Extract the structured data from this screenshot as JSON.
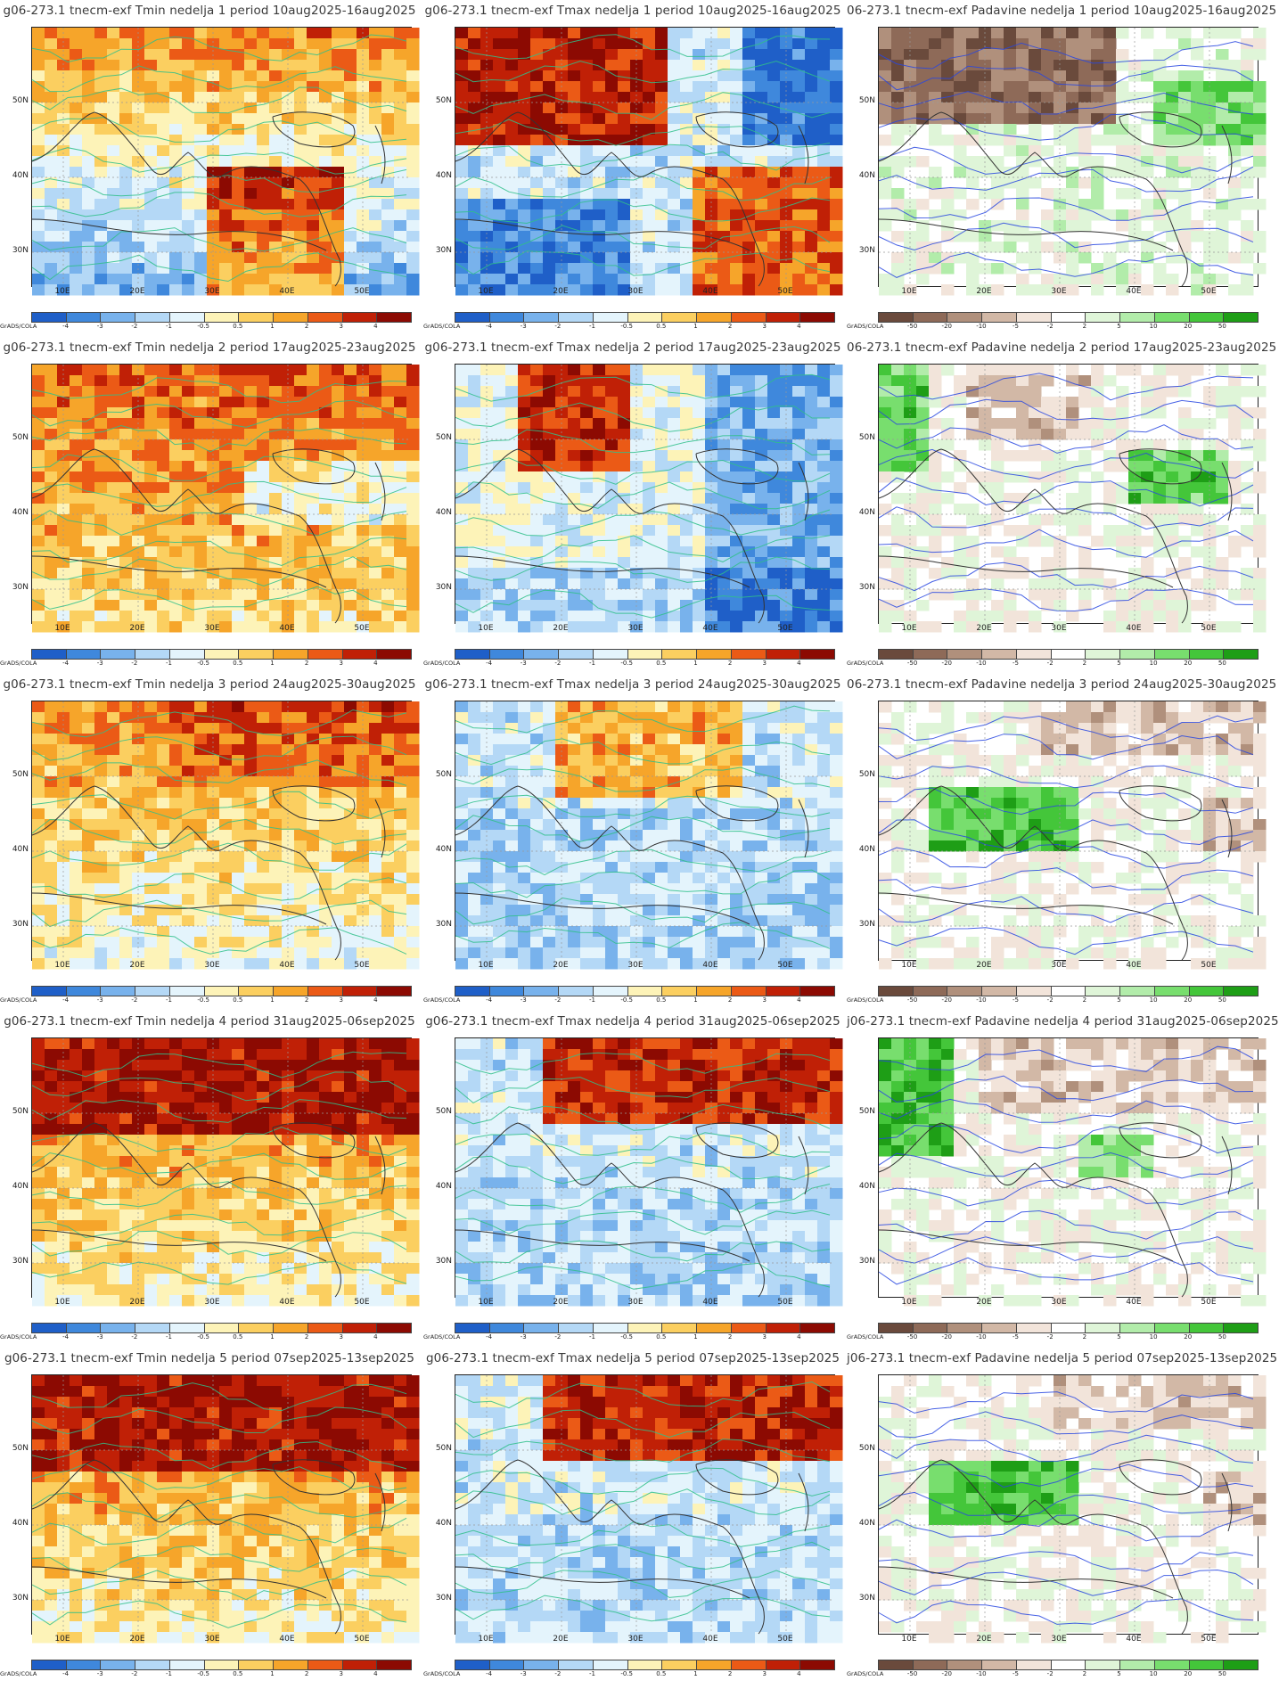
{
  "colors": {
    "temp_scale": [
      "#1f5fc8",
      "#3f88dc",
      "#78b2ec",
      "#b4d8f6",
      "#e4f4fc",
      "#fdf3b8",
      "#fbcf60",
      "#f6a52a",
      "#eb5a16",
      "#c02006",
      "#8c0a02"
    ],
    "precip_scale": [
      "#6a4a3c",
      "#8e6a58",
      "#b0907c",
      "#d2b8a6",
      "#f2e4da",
      "#ffffff",
      "#dff5d8",
      "#b2ecaa",
      "#78de6e",
      "#44c63a",
      "#1e9e16"
    ],
    "contour_temp": "#2fbf8a",
    "contour_precip": "#2846e0",
    "land_border": "#777777",
    "coast": "#333333"
  },
  "scale_labels": {
    "temp": [
      "-4",
      "-3",
      "-2",
      "-1",
      "-0.5",
      "0.5",
      "1",
      "2",
      "3",
      "4"
    ],
    "precip": [
      "-50",
      "-20",
      "-10",
      "-5",
      "-2",
      "2",
      "5",
      "10",
      "20",
      "50"
    ],
    "credit": "GrADS/COLA"
  },
  "axes": {
    "lat_labels": [
      "50N",
      "40N",
      "30N"
    ],
    "lon_labels": [
      "10E",
      "20E",
      "30E",
      "40E",
      "50E"
    ]
  },
  "panels": [
    {
      "title": "g06-273.1 tnecm-exf Tmin nedelja 1 period 10aug2025-16aug2025",
      "field": "Tmin",
      "week": 1,
      "pattern": "hot-north-east"
    },
    {
      "title": "g06-273.1 tnecm-exf Tmax nedelja 1 period 10aug2025-16aug2025",
      "field": "Tmax",
      "week": 1,
      "pattern": "hot-north-east-cool-west"
    },
    {
      "title": "06-273.1 tnecm-exf Padavine nedelja 1 period 10aug2025-16aug2025",
      "field": "Padavine",
      "week": 1,
      "pattern": "dry-north"
    },
    {
      "title": "g06-273.1 tnecm-exf Tmin nedelja 2 period 17aug2025-23aug2025",
      "field": "Tmin",
      "week": 2,
      "pattern": "warm-widespread"
    },
    {
      "title": "g06-273.1 tnecm-exf Tmax nedelja 2 period 17aug2025-23aug2025",
      "field": "Tmax",
      "week": 2,
      "pattern": "hot-center-cool-east"
    },
    {
      "title": "06-273.1 tnecm-exf Padavine nedelja 2 period 17aug2025-23aug2025",
      "field": "Padavine",
      "week": 2,
      "pattern": "wet-west-east"
    },
    {
      "title": "g06-273.1 tnecm-exf Tmin nedelja 3 period 24aug2025-30aug2025",
      "field": "Tmin",
      "week": 3,
      "pattern": "warm-north"
    },
    {
      "title": "g06-273.1 tnecm-exf Tmax nedelja 3 period 24aug2025-30aug2025",
      "field": "Tmax",
      "week": 3,
      "pattern": "cool-south"
    },
    {
      "title": "06-273.1 tnecm-exf Padavine nedelja 3 period 24aug2025-30aug2025",
      "field": "Padavine",
      "week": 3,
      "pattern": "wet-center"
    },
    {
      "title": "g06-273.1 tnecm-exf Tmin nedelja 4 period 31aug2025-06sep2025",
      "field": "Tmin",
      "week": 4,
      "pattern": "hot-north"
    },
    {
      "title": "g06-273.1 tnecm-exf Tmax nedelja 4 period 31aug2025-06sep2025",
      "field": "Tmax",
      "week": 4,
      "pattern": "hot-north-cool-south"
    },
    {
      "title": "j06-273.1 tnecm-exf Padavine nedelja 4 period 31aug2025-06sep2025",
      "field": "Padavine",
      "week": 4,
      "pattern": "wet-west"
    },
    {
      "title": "g06-273.1 tnecm-exf Tmin nedelja 5 period 07sep2025-13sep2025",
      "field": "Tmin",
      "week": 5,
      "pattern": "hot-north"
    },
    {
      "title": "g06-273.1 tnecm-exf Tmax nedelja 5 period 07sep2025-13sep2025",
      "field": "Tmax",
      "week": 5,
      "pattern": "hot-north-cool-south"
    },
    {
      "title": "j06-273.1 tnecm-exf Padavine nedelja 5 period 07sep2025-13sep2025",
      "field": "Padavine",
      "week": 5,
      "pattern": "wet-center"
    }
  ]
}
